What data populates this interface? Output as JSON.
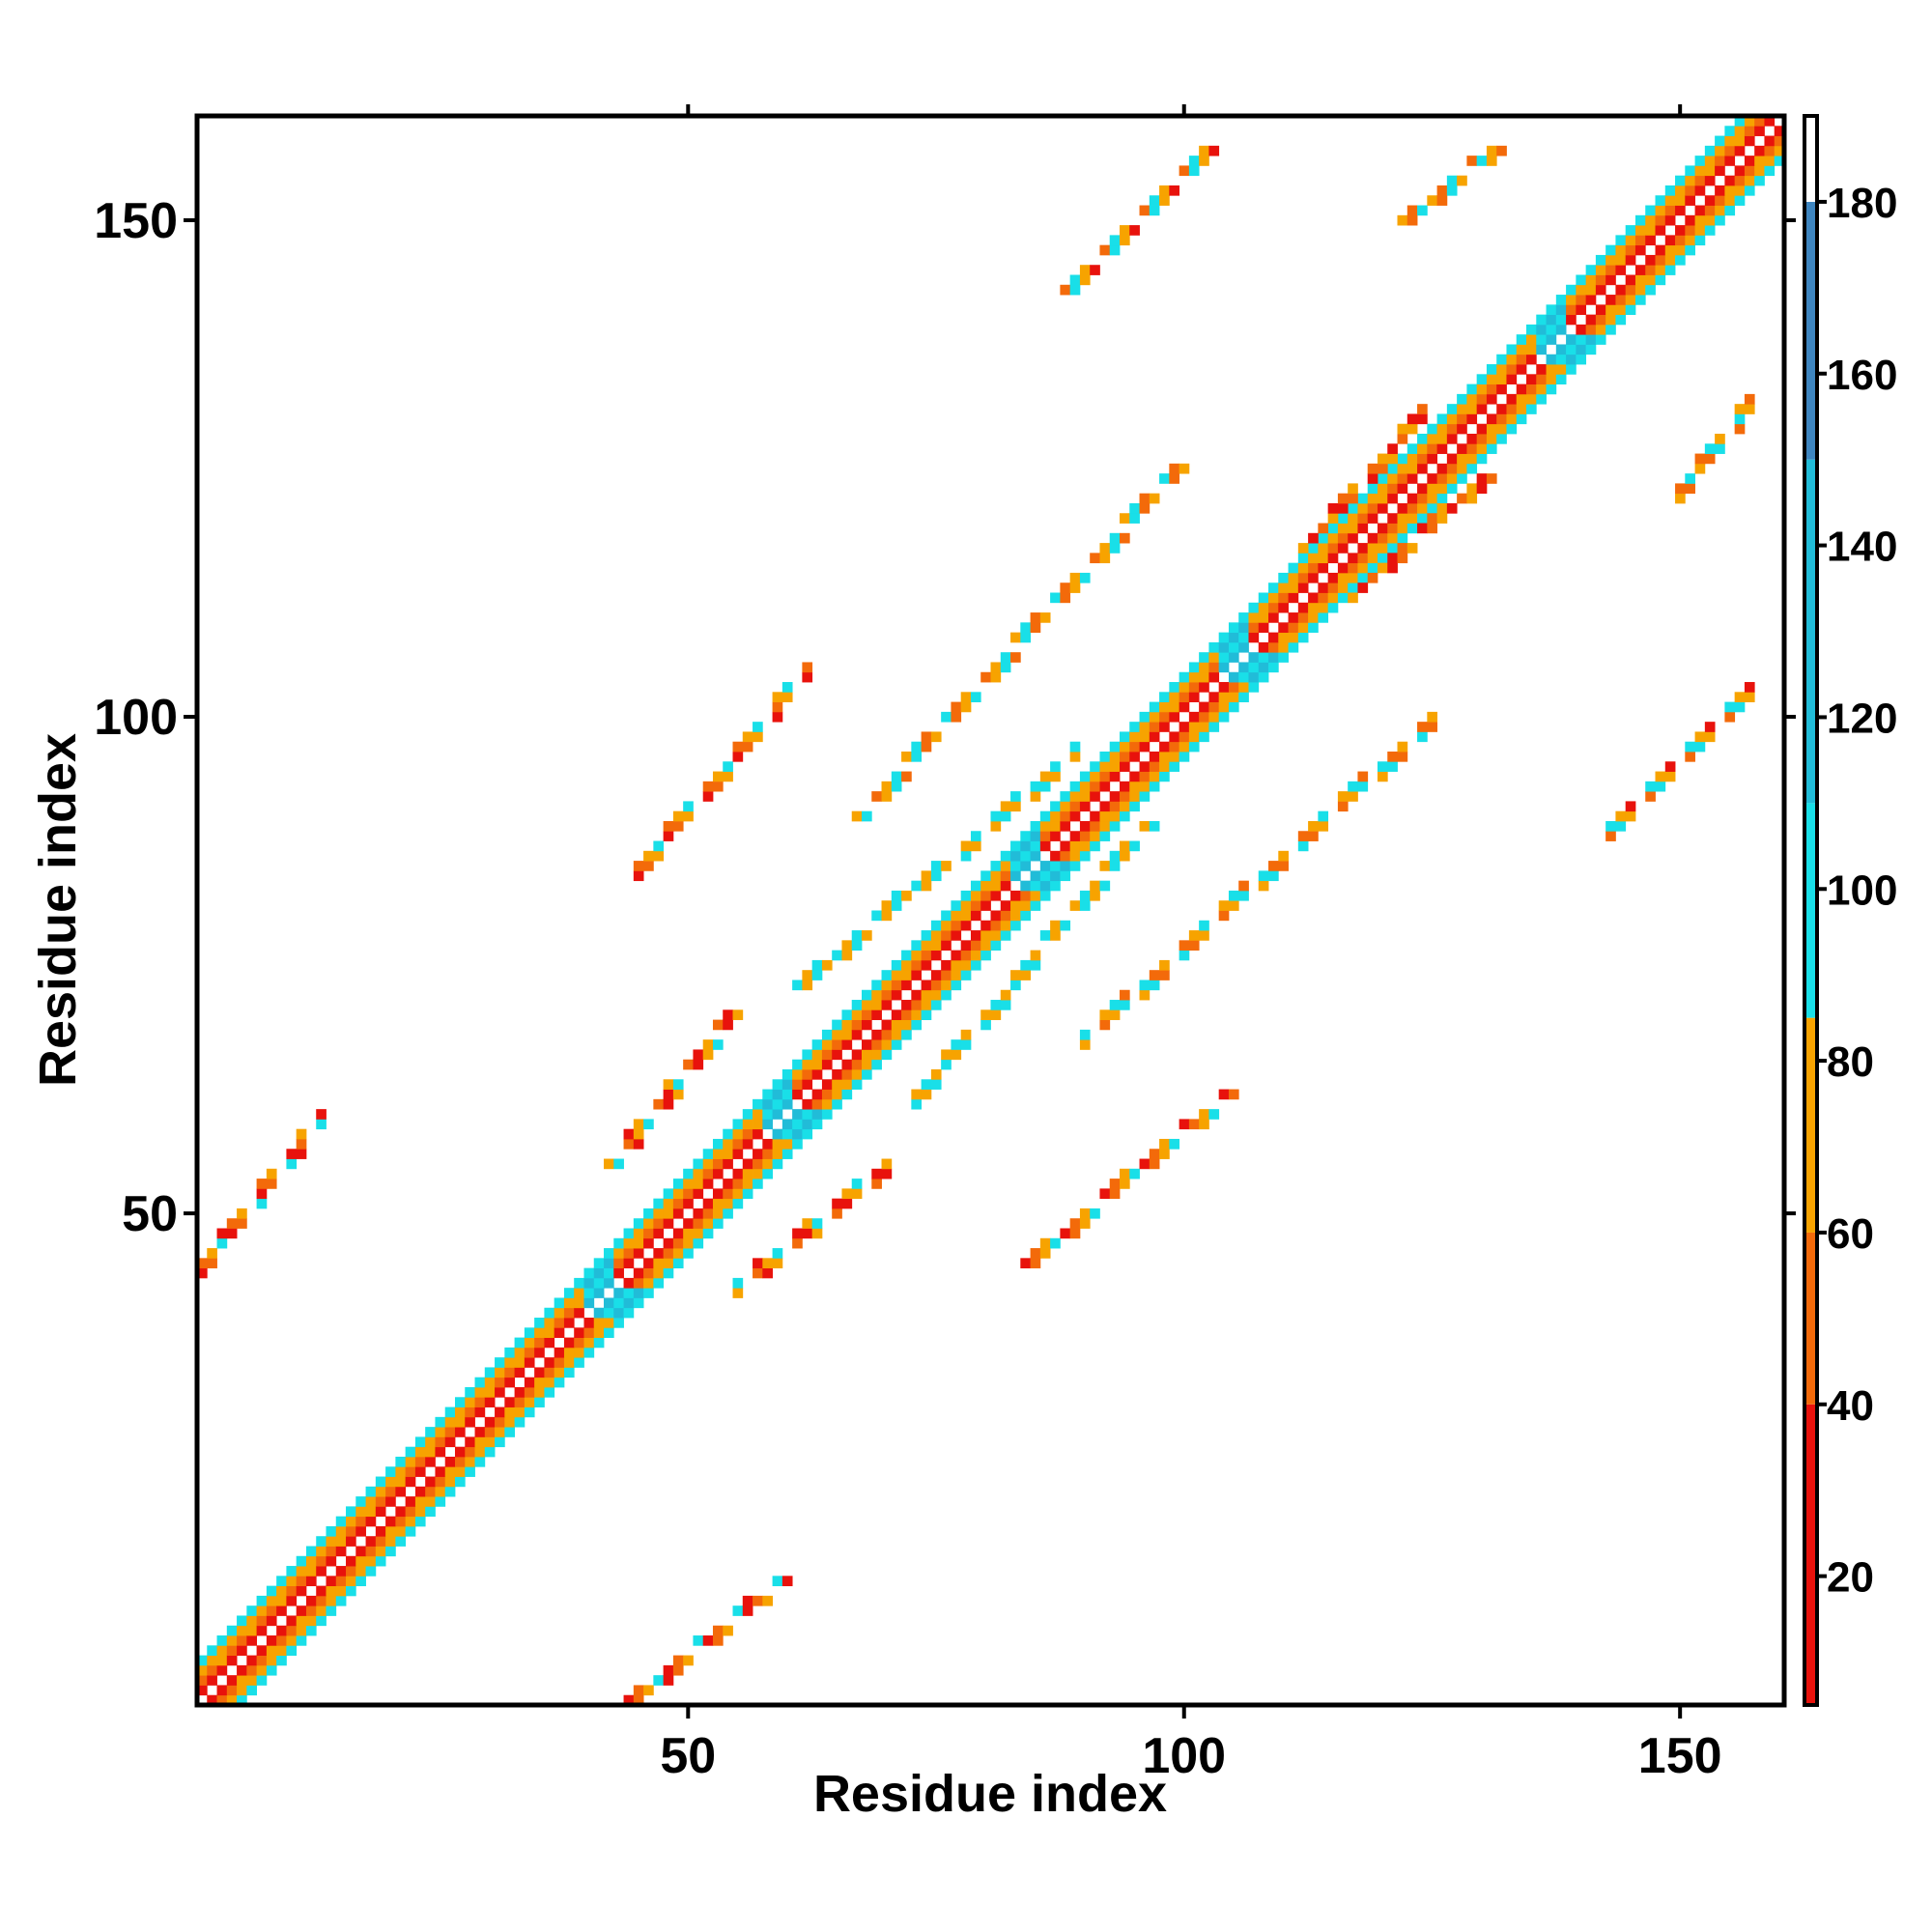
{
  "chart_data": {
    "type": "heatmap",
    "title": "",
    "xlabel": "Residue index",
    "ylabel": "Residue index",
    "xlim": [
      1,
      160
    ],
    "ylim": [
      1,
      160
    ],
    "xticks": [
      50,
      100,
      150
    ],
    "yticks": [
      50,
      100,
      150
    ],
    "colorbar": {
      "range": [
        5,
        190
      ],
      "ticks": [
        20,
        40,
        60,
        80,
        100,
        120,
        140,
        160,
        180
      ],
      "bands": [
        {
          "from": 5,
          "to": 40,
          "color": "#e8120c"
        },
        {
          "from": 40,
          "to": 60,
          "color": "#f36a0a"
        },
        {
          "from": 60,
          "to": 85,
          "color": "#f7a300"
        },
        {
          "from": 85,
          "to": 110,
          "color": "#19dfe8"
        },
        {
          "from": 110,
          "to": 150,
          "color": "#21bcd8"
        },
        {
          "from": 150,
          "to": 180,
          "color": "#3f86c0"
        },
        {
          "from": 180,
          "to": 190,
          "color": "#ffffff"
        }
      ]
    },
    "diagonal_band": {
      "description_values": [
        {
          "offset": 1,
          "value": 30
        },
        {
          "offset": 2,
          "value": 55
        },
        {
          "offset": 3,
          "value": 70
        },
        {
          "offset": 4,
          "value": 100
        }
      ],
      "breaks": [
        41,
        59,
        84,
        105,
        137
      ]
    },
    "offdiag_contacts": [
      {
        "from": [
          41,
          39
        ],
        "to": [
          57,
          56
        ],
        "values": [
          30,
          55,
          70,
          100
        ],
        "pattern": "antiparallel",
        "mirror": true
      },
      {
        "from": [
          44,
          1
        ],
        "to": [
          59,
          13
        ],
        "values": [
          30,
          55,
          70,
          100
        ],
        "pattern": "parallel",
        "mirror": true
      },
      {
        "from": [
          42,
          55
        ],
        "to": [
          54,
          70
        ],
        "values": [
          70,
          100,
          55,
          30
        ],
        "pattern": "parallel",
        "mirror": true
      },
      {
        "from": [
          60,
          72
        ],
        "to": [
          76,
          86
        ],
        "values": [
          70,
          100
        ],
        "pattern": "parallel",
        "mirror": true
      },
      {
        "from": [
          84,
          45
        ],
        "to": [
          104,
          62
        ],
        "values": [
          30,
          55,
          70,
          100
        ],
        "pattern": "parallel",
        "mirror": true
      },
      {
        "from": [
          86,
          78
        ],
        "to": [
          96,
          89
        ],
        "values": [
          100,
          70
        ],
        "pattern": "antiparallel",
        "mirror": true
      },
      {
        "from": [
          67,
          90
        ],
        "to": [
          99,
          125
        ],
        "values": [
          70,
          100,
          55
        ],
        "pattern": "parallel",
        "mirror": true
      },
      {
        "from": [
          87,
          142
        ],
        "to": [
          103,
          158
        ],
        "values": [
          30,
          55,
          100,
          70
        ],
        "pattern": "parallel",
        "mirror": true
      },
      {
        "from": [
          116,
          112
        ],
        "to": [
          130,
          124
        ],
        "values": [
          55,
          70,
          30
        ],
        "pattern": "antiparallel",
        "mirror": true
      },
      {
        "from": [
          122,
          150
        ],
        "to": [
          132,
          158
        ],
        "values": [
          70,
          55,
          100
        ],
        "pattern": "antiparallel",
        "mirror": true
      }
    ]
  }
}
